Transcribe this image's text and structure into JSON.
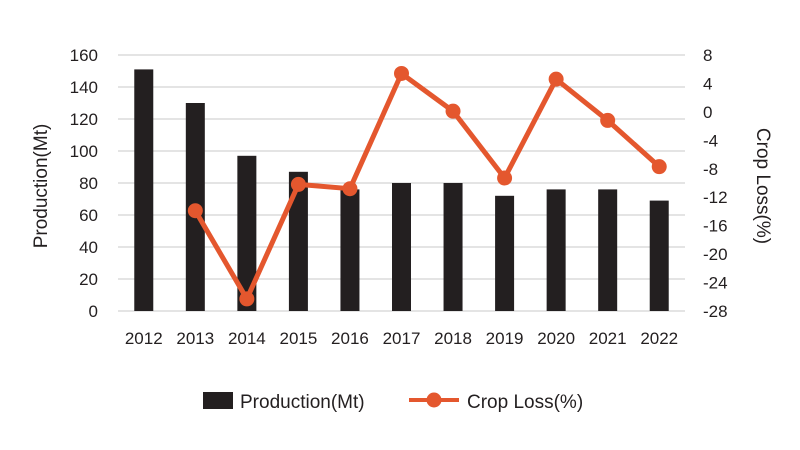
{
  "colors": {
    "bar": "#231f20",
    "line": "#e4572e",
    "grid": "#c8c8c8",
    "text": "#231f20"
  },
  "chart_data": {
    "type": "bar",
    "categories": [
      "2012",
      "2013",
      "2014",
      "2015",
      "2016",
      "2017",
      "2018",
      "2019",
      "2020",
      "2021",
      "2022"
    ],
    "series": [
      {
        "name": "Production(Mt)",
        "type": "bar",
        "axis": "left",
        "values": [
          151,
          130,
          97,
          87,
          76,
          80,
          80,
          72,
          76,
          76,
          69
        ]
      },
      {
        "name": "Crop Loss(%)",
        "type": "line",
        "axis": "right",
        "values": [
          null,
          -13.9,
          -26.3,
          -10.2,
          -10.8,
          5.4,
          0.1,
          -9.3,
          4.6,
          -1.2,
          -7.7
        ]
      }
    ],
    "ylabel": "Production(Mt)",
    "y2label": "Crop Loss(%)",
    "ylim": [
      0,
      160
    ],
    "y2lim": [
      -28,
      8
    ],
    "yticks": [
      "0",
      "20",
      "40",
      "60",
      "80",
      "100",
      "120",
      "140",
      "160"
    ],
    "y2ticks": [
      "-28",
      "-24",
      "-20",
      "-16",
      "-12",
      "-8",
      "-4",
      "0",
      "4",
      "8"
    ],
    "grid": true,
    "legend": "bottom"
  }
}
